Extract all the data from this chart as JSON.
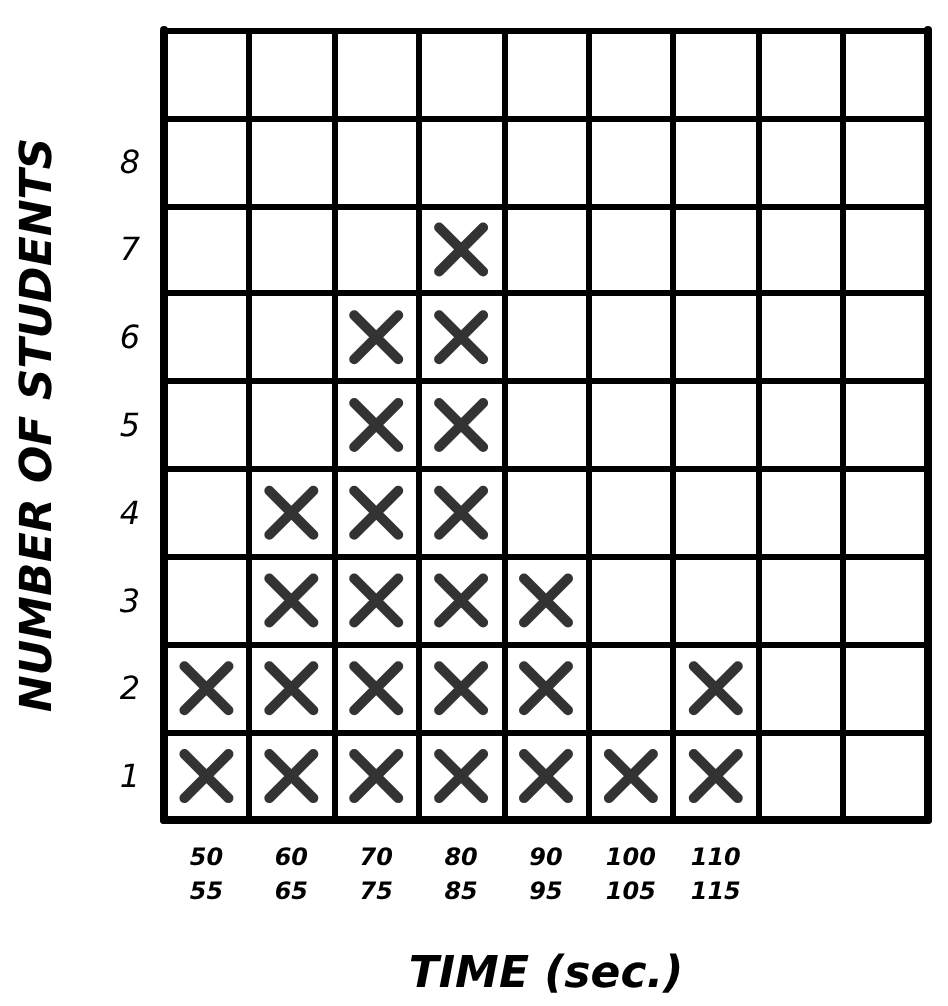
{
  "chart_data": {
    "type": "scatter",
    "xlabel": "TIME (sec.)",
    "ylabel": "NUMBER OF STUDENTS",
    "categories": [
      "50 55",
      "60 65",
      "70 75",
      "80 85",
      "90 95",
      "100 105",
      "110 115",
      null,
      null
    ],
    "series": [
      {
        "color": "#000000",
        "x": [
          "50 55",
          "50 55",
          "60 65",
          "60 65",
          "60 65",
          "60 65",
          "70 75",
          "70 75",
          "70 75",
          "70 75",
          "70 75",
          "70 75",
          "80 85",
          "80 85",
          "80 85",
          "80 85",
          "80 85",
          "80 85",
          "80 85",
          "90 95",
          "90 95",
          "90 95",
          "100 105",
          "110 115",
          "110 115"
        ],
        "values": [
          1,
          2,
          1,
          2,
          3,
          4,
          1,
          2,
          3,
          4,
          5,
          6,
          1,
          2,
          3,
          4,
          5,
          6,
          7,
          1,
          2,
          3,
          1,
          1,
          2
        ]
      }
    ],
    "ylim": [
      0.5,
      9.5
    ],
    "yticks": [
      1,
      2,
      3,
      4,
      5,
      6,
      7,
      8
    ],
    "grid": true,
    "marker": "cross"
  }
}
